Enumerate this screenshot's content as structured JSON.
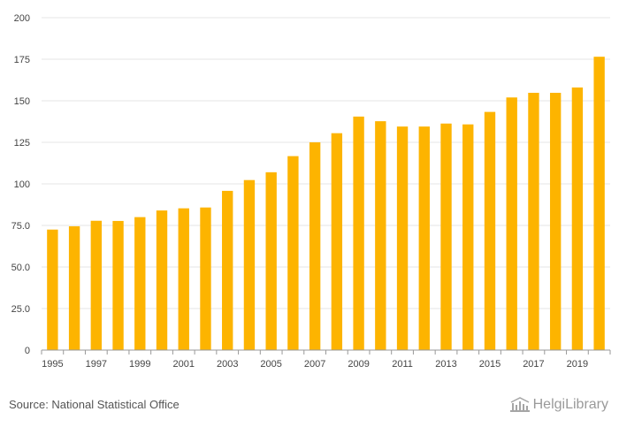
{
  "chart_data": {
    "type": "bar",
    "title": "",
    "xlabel": "",
    "ylabel": "",
    "categories": [
      "1995",
      "1996",
      "1997",
      "1998",
      "1999",
      "2000",
      "2001",
      "2002",
      "2003",
      "2004",
      "2005",
      "2006",
      "2007",
      "2008",
      "2009",
      "2010",
      "2011",
      "2012",
      "2013",
      "2014",
      "2015",
      "2016",
      "2017",
      "2018",
      "2019",
      "2020"
    ],
    "values": [
      72.5,
      74.5,
      77.8,
      77.7,
      80.0,
      84.0,
      85.3,
      85.8,
      95.8,
      102.3,
      107.0,
      116.7,
      125.0,
      130.5,
      140.5,
      137.7,
      134.5,
      134.5,
      136.3,
      135.8,
      143.3,
      152.0,
      154.8,
      154.8,
      158.0,
      176.5
    ],
    "ylim": [
      0,
      200
    ],
    "yticks": [
      0,
      25.0,
      50.0,
      75.0,
      100,
      125,
      150,
      175,
      200
    ],
    "ytick_labels": [
      "0",
      "25.0",
      "50.0",
      "75.0",
      "100",
      "125",
      "150",
      "175",
      "200"
    ],
    "xtick_labels": [
      "1995",
      "1997",
      "1999",
      "2001",
      "2003",
      "2005",
      "2007",
      "2009",
      "2011",
      "2013",
      "2015",
      "2017",
      "2019"
    ],
    "grid": true,
    "bar_color": "#FDB400"
  },
  "footer": {
    "source": "Source: National Statistical Office",
    "brand": "HelgiLibrary"
  }
}
